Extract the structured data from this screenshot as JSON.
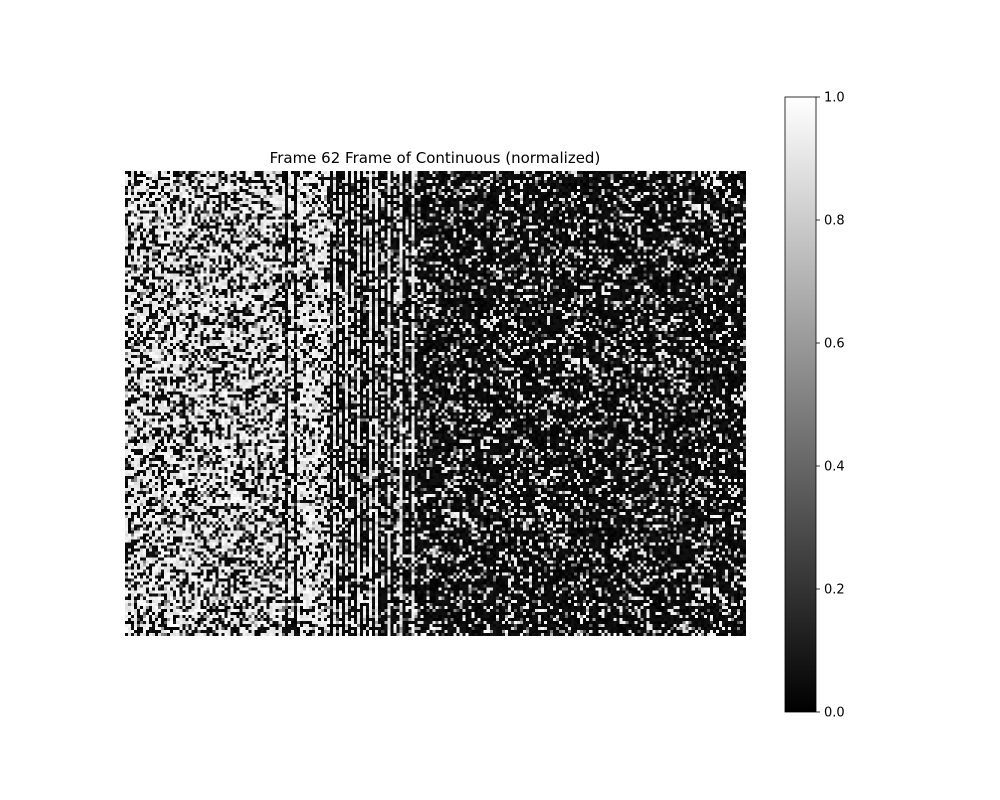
{
  "chart_data": {
    "type": "heatmap",
    "title": "Frame 62 Frame of Continuous (normalized)",
    "colormap": "gray",
    "colormap_stops": [
      "#000000",
      "#ffffff"
    ],
    "value_range": [
      0,
      1
    ],
    "axes_visible": false,
    "grid": false,
    "grid_shape": {
      "rows": 154,
      "cols": 206
    },
    "column_profile": {
      "description_free_values": true,
      "column_groups": [
        {
          "cols": [
            0,
            51
          ],
          "mean_brightness": 0.62
        },
        {
          "cols": [
            52,
            66
          ],
          "mean_brightness": 0.72
        },
        {
          "cols": [
            67,
            82
          ],
          "mean_brightness": 0.55
        },
        {
          "cols": [
            83,
            94
          ],
          "mean_brightness": 0.38
        },
        {
          "cols": [
            95,
            205
          ],
          "mean_brightness": 0.2
        }
      ],
      "dark_columns": [
        53,
        56,
        68,
        70,
        72,
        74,
        76,
        78,
        80,
        82,
        84,
        86,
        88,
        92,
        94
      ],
      "bright_columns": [
        69,
        73,
        77,
        81,
        83,
        87,
        91,
        95
      ]
    },
    "colorbar": {
      "ticks": [
        0.0,
        0.2,
        0.4,
        0.6,
        0.8,
        1.0
      ],
      "tick_labels": [
        "0.0",
        "0.2",
        "0.4",
        "0.6",
        "0.8",
        "1.0"
      ]
    }
  }
}
